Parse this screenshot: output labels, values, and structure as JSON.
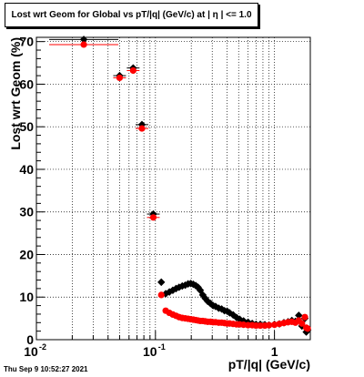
{
  "header": {
    "title": "Lost wrt Geom for Global vs pT/|q| (GeV/c) at |  η | <= 1.0"
  },
  "footer": {
    "timestamp": "Thu Sep  9 10:52:27 2021"
  },
  "colors": {
    "series_black": "#000000",
    "series_red": "#ff0000",
    "grid": "#000000",
    "background": "#ffffff"
  },
  "chart_data": {
    "type": "scatter",
    "xscale": "log",
    "xlim": [
      0.01,
      2
    ],
    "ylim": [
      0,
      71
    ],
    "xlabel": "pT/|q| (GeV/c)",
    "ylabel": "Lost wrt Geom (%)",
    "grid": true,
    "xticks": [
      {
        "value": 0.01,
        "label": "10"
      },
      {
        "value": 0.1,
        "label": "10"
      },
      {
        "value": 1,
        "label": "1"
      }
    ],
    "xtick_exponents": [
      "-2",
      "-1",
      ""
    ],
    "yticks": [
      0,
      10,
      20,
      30,
      40,
      50,
      60,
      70
    ],
    "series": [
      {
        "color": "#000000",
        "x": [
          0.025,
          0.05,
          0.065,
          0.077,
          0.096,
          0.112,
          0.122,
          0.131,
          0.14,
          0.149,
          0.158,
          0.168,
          0.178,
          0.188,
          0.198,
          0.208,
          0.218,
          0.228,
          0.238,
          0.25,
          0.262,
          0.275,
          0.29,
          0.305,
          0.32,
          0.34,
          0.36,
          0.38,
          0.4,
          0.42,
          0.45,
          0.48,
          0.51,
          0.55,
          0.6,
          0.65,
          0.7,
          0.76,
          0.83,
          0.9,
          1.0,
          1.1,
          1.2,
          1.3,
          1.4,
          1.5,
          1.6,
          1.7,
          1.8,
          1.85,
          1.9
        ],
        "y": [
          70.5,
          62,
          63.8,
          50.5,
          29.5,
          13.5,
          10.8,
          11.2,
          11.6,
          12,
          12.3,
          12.6,
          12.8,
          13.1,
          13.2,
          13,
          12.7,
          12.3,
          11.6,
          10.5,
          9.7,
          9.0,
          8.5,
          8.0,
          7.8,
          7.4,
          7.2,
          6.8,
          6.7,
          6.3,
          5.8,
          5.2,
          4.8,
          4.4,
          4.1,
          3.8,
          3.6,
          3.6,
          3.5,
          3.4,
          3.6,
          3.7,
          4.0,
          4.2,
          4.5,
          4.3,
          5.7,
          3.2,
          5.0,
          1.8,
          2.3
        ]
      },
      {
        "color": "#ff0000",
        "x": [
          0.025,
          0.05,
          0.065,
          0.077,
          0.096,
          0.112,
          0.122,
          0.131,
          0.14,
          0.149,
          0.158,
          0.168,
          0.178,
          0.188,
          0.198,
          0.208,
          0.218,
          0.228,
          0.238,
          0.25,
          0.262,
          0.275,
          0.29,
          0.305,
          0.32,
          0.34,
          0.36,
          0.38,
          0.4,
          0.42,
          0.45,
          0.48,
          0.51,
          0.55,
          0.6,
          0.65,
          0.7,
          0.76,
          0.83,
          0.9,
          1.0,
          1.1,
          1.2,
          1.3,
          1.4,
          1.5,
          1.6,
          1.7,
          1.8,
          1.85,
          1.9
        ],
        "y": [
          69.3,
          61.5,
          63.2,
          49.6,
          28.7,
          10.5,
          6.8,
          6.3,
          5.9,
          5.6,
          5.3,
          5.1,
          5.0,
          4.9,
          4.8,
          4.7,
          4.6,
          4.5,
          4.4,
          4.4,
          4.3,
          4.2,
          4.2,
          4.1,
          4.1,
          4.0,
          4.0,
          3.9,
          3.8,
          3.8,
          3.7,
          3.6,
          3.6,
          3.5,
          3.4,
          3.4,
          3.3,
          3.3,
          3.3,
          3.4,
          3.5,
          3.7,
          3.9,
          4.1,
          4.2,
          4.0,
          4.5,
          3.8,
          5.3,
          2.8,
          2.6
        ]
      }
    ]
  }
}
